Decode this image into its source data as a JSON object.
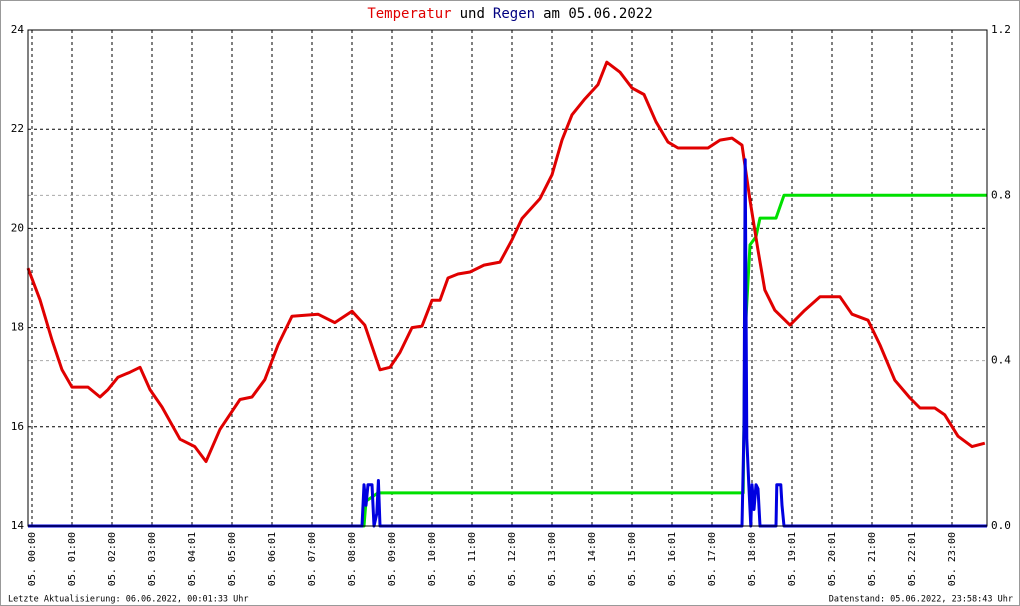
{
  "chart_data": {
    "type": "line",
    "title_parts": [
      {
        "text": "Temperatur",
        "color": "#e00000"
      },
      {
        "text": "und",
        "color": "#000000"
      },
      {
        "text": "Regen",
        "color": "#000080"
      },
      {
        "text": "am 05.06.2022",
        "color": "#000000"
      }
    ],
    "footer_left": "Letzte Aktualisierung: 06.06.2022, 00:01:33 Uhr",
    "footer_right": "Datenstand: 05.06.2022, 23:58:43 Uhr",
    "xlim": [
      -0.1,
      23.875
    ],
    "ylim": [
      14,
      24
    ],
    "y2lim": [
      0,
      1.2
    ],
    "yticks": [
      14,
      16,
      18,
      20,
      22,
      24
    ],
    "y2ticks": [
      {
        "value": 0,
        "label": "0.0"
      },
      0.4,
      0.8,
      1.2
    ],
    "xticks": [
      {
        "value": 0,
        "label": "05. 00:00"
      },
      {
        "value": 1,
        "label": "05. 01:00"
      },
      {
        "value": 2,
        "label": "05. 02:00"
      },
      {
        "value": 3,
        "label": "05. 03:00"
      },
      {
        "value": 4,
        "label": "05. 04:01"
      },
      {
        "value": 5,
        "label": "05. 05:00"
      },
      {
        "value": 6,
        "label": "05. 06:01"
      },
      {
        "value": 7,
        "label": "05. 07:00"
      },
      {
        "value": 8,
        "label": "05. 08:00"
      },
      {
        "value": 9,
        "label": "05. 09:00"
      },
      {
        "value": 10,
        "label": "05. 10:00"
      },
      {
        "value": 11,
        "label": "05. 11:00"
      },
      {
        "value": 12,
        "label": "05. 12:00"
      },
      {
        "value": 13,
        "label": "05. 13:00"
      },
      {
        "value": 14,
        "label": "05. 14:00"
      },
      {
        "value": 15,
        "label": "05. 15:00"
      },
      {
        "value": 16,
        "label": "05. 16:01"
      },
      {
        "value": 17,
        "label": "05. 17:00"
      },
      {
        "value": 18,
        "label": "05. 18:00"
      },
      {
        "value": 19,
        "label": "05. 19:01"
      },
      {
        "value": 20,
        "label": "05. 20:01"
      },
      {
        "value": 21,
        "label": "05. 21:00"
      },
      {
        "value": 22,
        "label": "05. 22:01"
      },
      {
        "value": 23,
        "label": "05. 23:00"
      }
    ],
    "grid": true,
    "series": [
      {
        "color": "#00e000",
        "axis": "y2",
        "x": [
          -0.1,
          8.3,
          8.35,
          8.65,
          17.78,
          17.82,
          17.95,
          18.1,
          18.2,
          18.6,
          18.8,
          23.875
        ],
        "values": [
          0,
          0,
          0.06,
          0.08,
          0.08,
          0.45,
          0.68,
          0.7,
          0.745,
          0.745,
          0.8,
          0.8
        ]
      },
      {
        "color": "#e00000",
        "x": [
          -0.1,
          0.2,
          0.5,
          0.75,
          1.0,
          1.4,
          1.7,
          1.9,
          2.15,
          2.45,
          2.7,
          2.95,
          3.25,
          3.7,
          4.07,
          4.35,
          4.7,
          5.2,
          5.5,
          5.82,
          6.15,
          6.5,
          7.15,
          7.57,
          8.0,
          8.32,
          8.7,
          8.95,
          9.2,
          9.5,
          9.75,
          10.0,
          10.2,
          10.4,
          10.65,
          10.95,
          11.3,
          11.7,
          12.0,
          12.25,
          12.7,
          13.0,
          13.25,
          13.5,
          13.8,
          14.15,
          14.37,
          14.7,
          15.0,
          15.3,
          15.6,
          15.9,
          16.15,
          16.9,
          17.2,
          17.5,
          17.75,
          17.95,
          18.15,
          18.32,
          18.57,
          18.95,
          19.32,
          19.7,
          20.2,
          20.5,
          20.9,
          21.2,
          21.57,
          21.95,
          22.2,
          22.57,
          22.82,
          23.15,
          23.5,
          23.82
        ],
        "values": [
          19.2,
          18.56,
          17.75,
          17.15,
          16.8,
          16.8,
          16.6,
          16.75,
          17.0,
          17.1,
          17.2,
          16.75,
          16.4,
          15.75,
          15.6,
          15.3,
          15.95,
          16.55,
          16.6,
          16.95,
          17.65,
          18.23,
          18.27,
          18.1,
          18.33,
          18.05,
          17.15,
          17.2,
          17.5,
          18.0,
          18.03,
          18.55,
          18.55,
          19.0,
          19.08,
          19.12,
          19.26,
          19.32,
          19.77,
          20.2,
          20.6,
          21.08,
          21.78,
          22.29,
          22.59,
          22.9,
          23.35,
          23.15,
          22.83,
          22.7,
          22.15,
          21.74,
          21.62,
          21.62,
          21.78,
          21.82,
          21.68,
          20.57,
          19.56,
          18.76,
          18.35,
          18.05,
          18.35,
          18.62,
          18.62,
          18.27,
          18.15,
          17.65,
          16.94,
          16.58,
          16.38,
          16.38,
          16.24,
          15.81,
          15.6,
          15.67
        ]
      },
      {
        "color": "#0000e0",
        "axis": "y2",
        "x": [
          -0.1,
          8.25,
          8.3,
          8.35,
          8.4,
          8.5,
          8.55,
          8.62,
          8.66,
          8.7,
          17.75,
          17.8,
          17.83,
          17.87,
          17.92,
          17.97,
          18.0,
          18.05,
          18.1,
          18.15,
          18.2,
          18.6,
          18.62,
          18.72,
          18.75,
          18.8,
          23.875
        ],
        "values": [
          0,
          0,
          0.1,
          0.05,
          0.1,
          0.1,
          0,
          0.03,
          0.11,
          0,
          0,
          0.24,
          0.886,
          0.21,
          0.1,
          0,
          0.1,
          0.04,
          0.1,
          0.09,
          0,
          0,
          0.1,
          0.1,
          0.05,
          0,
          0
        ]
      }
    ]
  }
}
